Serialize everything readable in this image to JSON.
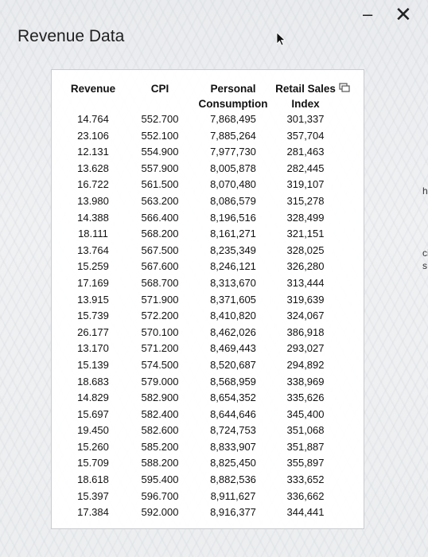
{
  "title": "Revenue Data",
  "window": {
    "minimize": "–",
    "close": "✕"
  },
  "icons": {
    "cursor": "pointer-arrow-icon",
    "copy": "copy-icon"
  },
  "table": {
    "headers": [
      "Revenue",
      "CPI",
      "Personal Consumption",
      "Retail Sales Index"
    ],
    "rows": [
      [
        "14.764",
        "552.700",
        "7,868,495",
        "301,337"
      ],
      [
        "23.106",
        "552.100",
        "7,885,264",
        "357,704"
      ],
      [
        "12.131",
        "554.900",
        "7,977,730",
        "281,463"
      ],
      [
        "13.628",
        "557.900",
        "8,005,878",
        "282,445"
      ],
      [
        "16.722",
        "561.500",
        "8,070,480",
        "319,107"
      ],
      [
        "13.980",
        "563.200",
        "8,086,579",
        "315,278"
      ],
      [
        "14.388",
        "566.400",
        "8,196,516",
        "328,499"
      ],
      [
        "18.111",
        "568.200",
        "8,161,271",
        "321,151"
      ],
      [
        "13.764",
        "567.500",
        "8,235,349",
        "328,025"
      ],
      [
        "15.259",
        "567.600",
        "8,246,121",
        "326,280"
      ],
      [
        "17.169",
        "568.700",
        "8,313,670",
        "313,444"
      ],
      [
        "13.915",
        "571.900",
        "8,371,605",
        "319,639"
      ],
      [
        "15.739",
        "572.200",
        "8,410,820",
        "324,067"
      ],
      [
        "26.177",
        "570.100",
        "8,462,026",
        "386,918"
      ],
      [
        "13.170",
        "571.200",
        "8,469,443",
        "293,027"
      ],
      [
        "15.139",
        "574.500",
        "8,520,687",
        "294,892"
      ],
      [
        "18.683",
        "579.000",
        "8,568,959",
        "338,969"
      ],
      [
        "14.829",
        "582.900",
        "8,654,352",
        "335,626"
      ],
      [
        "15.697",
        "582.400",
        "8,644,646",
        "345,400"
      ],
      [
        "19.450",
        "582.600",
        "8,724,753",
        "351,068"
      ],
      [
        "15.260",
        "585.200",
        "8,833,907",
        "351,887"
      ],
      [
        "15.709",
        "588.200",
        "8,825,450",
        "355,897"
      ],
      [
        "18.618",
        "595.400",
        "8,882,536",
        "333,652"
      ],
      [
        "15.397",
        "596.700",
        "8,911,627",
        "336,662"
      ],
      [
        "17.384",
        "592.000",
        "8,916,377",
        "344,441"
      ]
    ]
  },
  "side_fragments": [
    "h",
    "ci",
    "s"
  ]
}
